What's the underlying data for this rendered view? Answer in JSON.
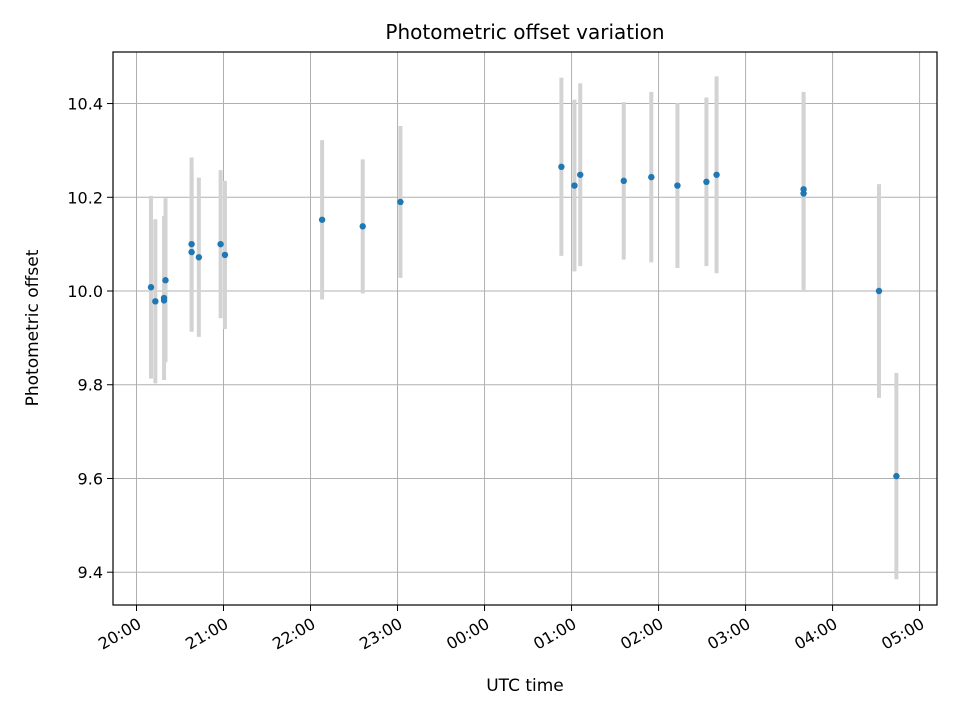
{
  "chart_data": {
    "type": "scatter",
    "title": "Photometric offset variation",
    "xlabel": "UTC time",
    "ylabel": "Photometric offset",
    "x_tick_labels": [
      "20:00",
      "21:00",
      "22:00",
      "23:00",
      "00:00",
      "01:00",
      "02:00",
      "03:00",
      "04:00",
      "05:00"
    ],
    "y_tick_labels": [
      "9.4",
      "9.6",
      "9.8",
      "10.0",
      "10.2",
      "10.4"
    ],
    "y_ticks": [
      9.4,
      9.6,
      9.8,
      10.0,
      10.2,
      10.4
    ],
    "xlim_hours": [
      -0.27,
      9.2
    ],
    "ylim": [
      9.33,
      10.51
    ],
    "grid": true,
    "point_color": "#1f77b4",
    "errorbar_color": "#d3d3d3",
    "points": [
      {
        "time": "20:10",
        "y": 10.008,
        "err": 0.195
      },
      {
        "time": "20:13",
        "y": 9.978,
        "err": 0.175
      },
      {
        "time": "20:19",
        "y": 9.985,
        "err": 0.175
      },
      {
        "time": "20:19",
        "y": 9.98,
        "err": 0.17
      },
      {
        "time": "20:20",
        "y": 10.023,
        "err": 0.175
      },
      {
        "time": "20:38",
        "y": 10.1,
        "err": 0.185
      },
      {
        "time": "20:38",
        "y": 10.083,
        "err": 0.17
      },
      {
        "time": "20:43",
        "y": 10.072,
        "err": 0.17
      },
      {
        "time": "20:58",
        "y": 10.1,
        "err": 0.158
      },
      {
        "time": "21:01",
        "y": 10.077,
        "err": 0.158
      },
      {
        "time": "22:08",
        "y": 10.152,
        "err": 0.17
      },
      {
        "time": "22:36",
        "y": 10.138,
        "err": 0.143
      },
      {
        "time": "23:02",
        "y": 10.19,
        "err": 0.162
      },
      {
        "time": "00:53",
        "y": 10.265,
        "err": 0.19
      },
      {
        "time": "01:02",
        "y": 10.225,
        "err": 0.183
      },
      {
        "time": "01:06",
        "y": 10.248,
        "err": 0.195
      },
      {
        "time": "01:36",
        "y": 10.235,
        "err": 0.168
      },
      {
        "time": "01:55",
        "y": 10.243,
        "err": 0.182
      },
      {
        "time": "02:13",
        "y": 10.225,
        "err": 0.176
      },
      {
        "time": "02:33",
        "y": 10.233,
        "err": 0.18
      },
      {
        "time": "02:40",
        "y": 10.248,
        "err": 0.21
      },
      {
        "time": "03:40",
        "y": 10.217,
        "err": 0.208
      },
      {
        "time": "03:40",
        "y": 10.208,
        "err": 0.208
      },
      {
        "time": "04:32",
        "y": 10.0,
        "err": 0.228
      },
      {
        "time": "04:44",
        "y": 9.605,
        "err": 0.22
      }
    ]
  }
}
